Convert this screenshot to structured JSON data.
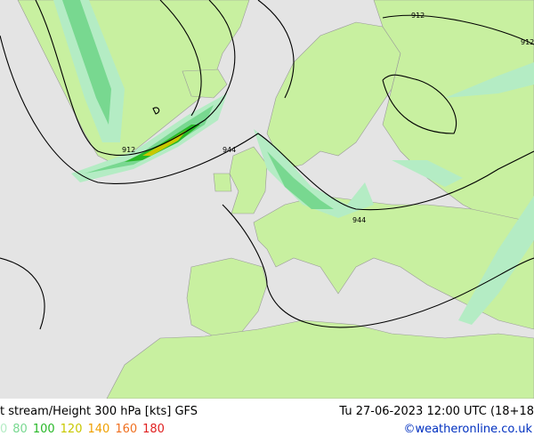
{
  "header": {
    "title": "t stream/Height 300 hPa [kts] GFS",
    "valid_time": "Tu 27-06-2023 12:00 UTC (18+18",
    "credit": "©weatheronline.co.uk"
  },
  "legend": {
    "items": [
      {
        "label": "0",
        "color": "#b4ecc4"
      },
      {
        "label": "80",
        "color": "#78d890"
      },
      {
        "label": "100",
        "color": "#28b828"
      },
      {
        "label": "120",
        "color": "#c8c800"
      },
      {
        "label": "140",
        "color": "#f0a000"
      },
      {
        "label": "160",
        "color": "#f07020"
      },
      {
        "label": "180",
        "color": "#e02020"
      }
    ]
  },
  "contour_labels": [
    "912",
    "912",
    "912",
    "944",
    "944"
  ]
}
